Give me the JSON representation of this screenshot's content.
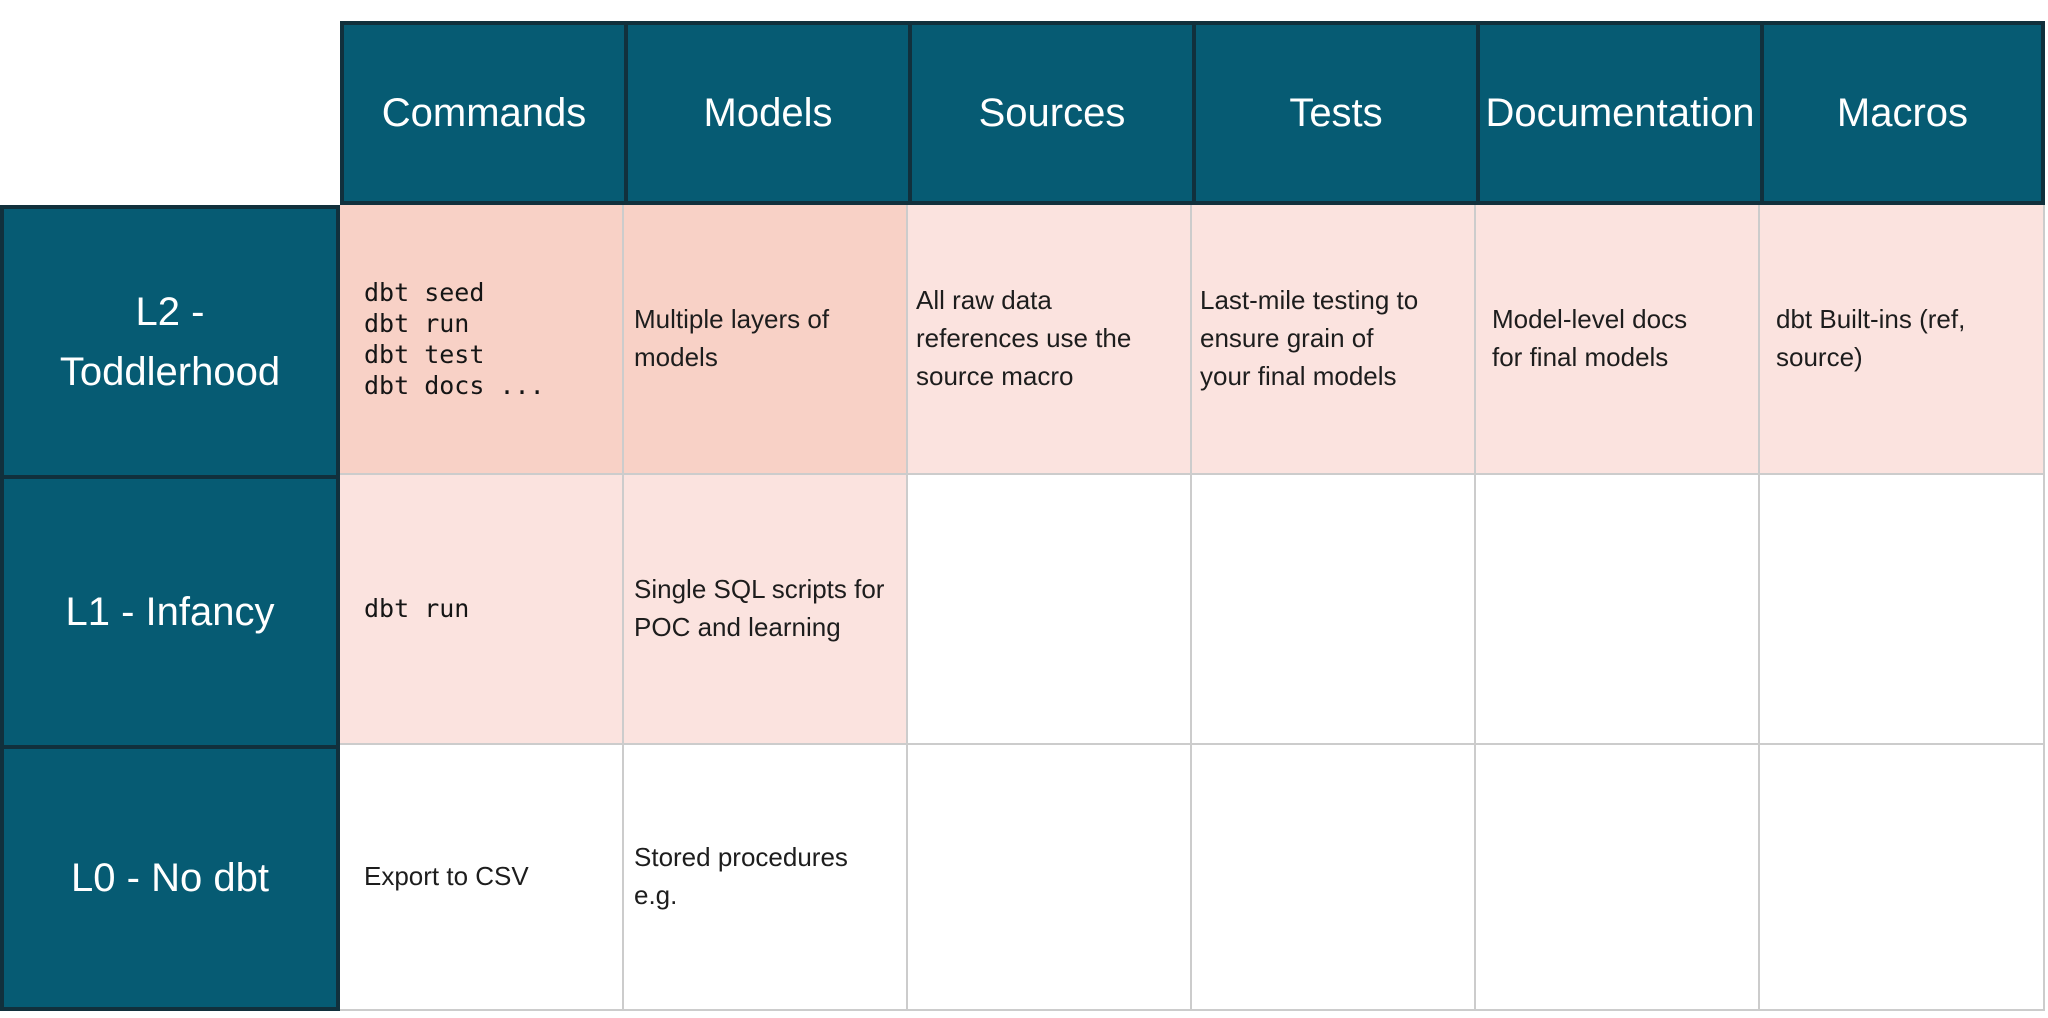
{
  "colors": {
    "header_teal": "#065b73",
    "border_dark": "#11303c",
    "cell_salmon": "#f8d1c6",
    "cell_pink": "#fbe3df",
    "grid_line": "#cccccc",
    "header_text": "#ffffff",
    "cell_text": "#1d1d1d"
  },
  "table": {
    "column_headers": [
      "Commands",
      "Models",
      "Sources",
      "Tests",
      "Documentation",
      "Macros"
    ],
    "rows": [
      {
        "label": "L2 -\nToddlerhood",
        "cells": {
          "commands": "dbt seed\ndbt run\ndbt test\ndbt docs ...",
          "models": "Multiple layers of\nmodels",
          "sources": "All raw data\nreferences use the\nsource macro",
          "tests": "Last-mile testing to\nensure grain of\nyour final models",
          "documentation": "Model-level docs\nfor final models",
          "macros": "dbt Built-ins (ref,\nsource)"
        }
      },
      {
        "label": "L1 - Infancy",
        "cells": {
          "commands": "dbt run",
          "models": "Single SQL scripts for\nPOC and learning",
          "sources": "",
          "tests": "",
          "documentation": "",
          "macros": ""
        }
      },
      {
        "label": "L0 - No dbt",
        "cells": {
          "commands": "Export to CSV",
          "models": "Stored procedures\ne.g.",
          "sources": "",
          "tests": "",
          "documentation": "",
          "macros": ""
        }
      }
    ]
  }
}
